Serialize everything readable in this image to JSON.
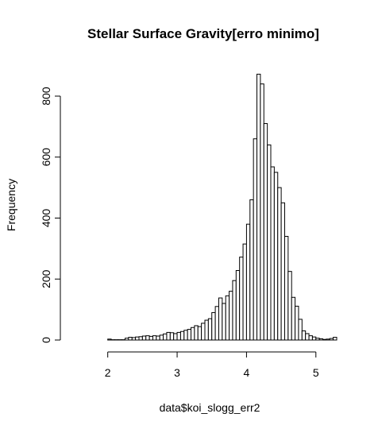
{
  "chart_data": {
    "type": "bar",
    "title": "Stellar Surface Gravity[erro minimo]",
    "xlabel": "data$koi_slogg_err2",
    "ylabel": "Frequency",
    "bin_width": 0.05,
    "bin_start": 1.5,
    "xlim": [
      1.5,
      5.3
    ],
    "ylim": [
      0,
      900
    ],
    "x_ticks": [
      2,
      3,
      4,
      5
    ],
    "y_ticks": [
      0,
      200,
      400,
      600,
      800
    ],
    "grid": false,
    "values": [
      0,
      0,
      0,
      0,
      0,
      0,
      0,
      0,
      0,
      0,
      3,
      1,
      1,
      1,
      1,
      6,
      9,
      8,
      10,
      11,
      13,
      14,
      12,
      14,
      13,
      16,
      20,
      25,
      24,
      21,
      25,
      28,
      32,
      35,
      41,
      47,
      44,
      55,
      65,
      70,
      90,
      110,
      138,
      120,
      145,
      160,
      195,
      228,
      272,
      315,
      380,
      460,
      660,
      872,
      840,
      710,
      640,
      568,
      550,
      500,
      450,
      340,
      225,
      140,
      111,
      68,
      30,
      21,
      14,
      10,
      6,
      4,
      2,
      3,
      5,
      9
    ]
  }
}
